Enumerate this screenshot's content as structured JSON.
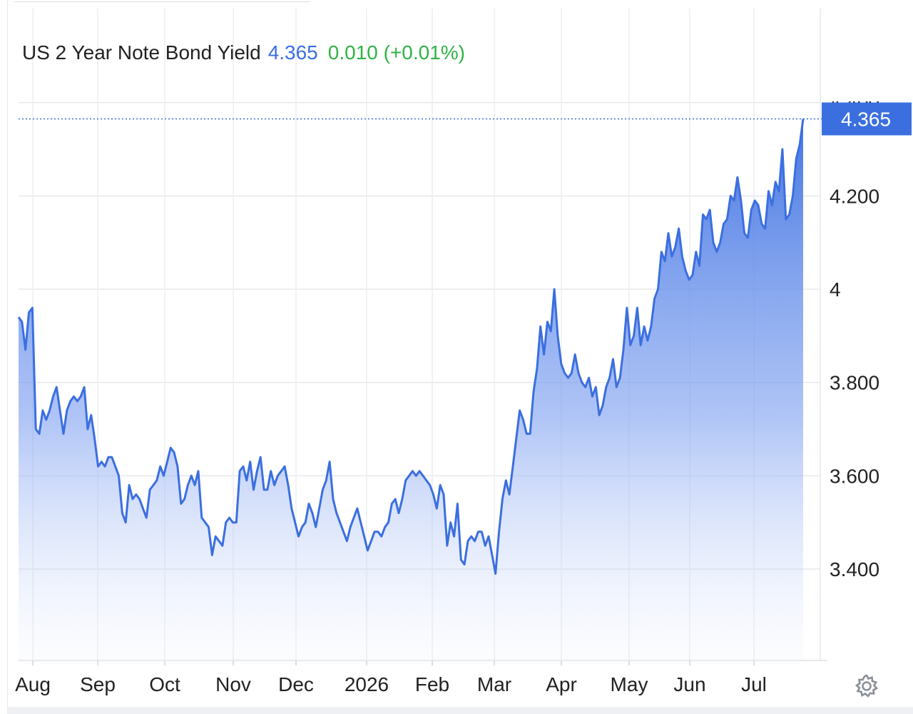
{
  "header": {
    "title": "US 2 Year Note Bond Yield",
    "price": "4.365",
    "change": "0.010 (+0.01%)"
  },
  "last_value_label": "4.365",
  "settings_icon": "gear-icon",
  "colors": {
    "line": "#3b6fe0",
    "change": "#2fb344",
    "badge": "#3b6fe0"
  },
  "chart_data": {
    "type": "area",
    "x_tick_labels": [
      "Aug",
      "Sep",
      "Oct",
      "Nov",
      "Dec",
      "2026",
      "Feb",
      "Mar",
      "Apr",
      "May",
      "Jun",
      "Jul"
    ],
    "y_tick_labels": [
      "4.400",
      "4.200",
      "4",
      "3.800",
      "3.600",
      "3.400"
    ],
    "y_ticks": [
      4.4,
      4.2,
      4.0,
      3.8,
      3.6,
      3.4
    ],
    "ylim": [
      3.2,
      4.6
    ],
    "grid": true,
    "series": [
      {
        "values": [
          3.94,
          3.93,
          3.87,
          3.95,
          3.96,
          3.7,
          3.69,
          3.74,
          3.72,
          3.74,
          3.77,
          3.79,
          3.74,
          3.69,
          3.74,
          3.76,
          3.77,
          3.76,
          3.77,
          3.79,
          3.7,
          3.73,
          3.68,
          3.62,
          3.63,
          3.62,
          3.64,
          3.64,
          3.62,
          3.6,
          3.52,
          3.5,
          3.58,
          3.55,
          3.56,
          3.55,
          3.53,
          3.51,
          3.57,
          3.58,
          3.59,
          3.62,
          3.6,
          3.63,
          3.66,
          3.65,
          3.62,
          3.54,
          3.55,
          3.58,
          3.6,
          3.58,
          3.61,
          3.51,
          3.5,
          3.49,
          3.43,
          3.47,
          3.46,
          3.45,
          3.5,
          3.51,
          3.5,
          3.5,
          3.61,
          3.62,
          3.59,
          3.63,
          3.57,
          3.61,
          3.64,
          3.57,
          3.57,
          3.61,
          3.58,
          3.6,
          3.61,
          3.62,
          3.58,
          3.53,
          3.5,
          3.47,
          3.49,
          3.5,
          3.54,
          3.52,
          3.49,
          3.53,
          3.57,
          3.59,
          3.63,
          3.55,
          3.52,
          3.5,
          3.48,
          3.46,
          3.49,
          3.51,
          3.53,
          3.5,
          3.47,
          3.44,
          3.46,
          3.48,
          3.48,
          3.47,
          3.49,
          3.5,
          3.54,
          3.55,
          3.52,
          3.55,
          3.59,
          3.6,
          3.61,
          3.6,
          3.61,
          3.6,
          3.59,
          3.58,
          3.56,
          3.53,
          3.58,
          3.56,
          3.45,
          3.5,
          3.47,
          3.54,
          3.42,
          3.41,
          3.46,
          3.47,
          3.46,
          3.48,
          3.48,
          3.45,
          3.47,
          3.43,
          3.39,
          3.48,
          3.55,
          3.59,
          3.56,
          3.62,
          3.68,
          3.74,
          3.72,
          3.69,
          3.69,
          3.78,
          3.83,
          3.92,
          3.86,
          3.93,
          3.91,
          4.0,
          3.9,
          3.84,
          3.82,
          3.81,
          3.82,
          3.86,
          3.82,
          3.8,
          3.79,
          3.81,
          3.77,
          3.79,
          3.73,
          3.75,
          3.79,
          3.81,
          3.85,
          3.79,
          3.81,
          3.87,
          3.96,
          3.88,
          3.9,
          3.96,
          3.88,
          3.92,
          3.89,
          3.92,
          3.98,
          4.0,
          4.08,
          4.06,
          4.12,
          4.07,
          4.09,
          4.13,
          4.07,
          4.04,
          4.02,
          4.03,
          4.08,
          4.05,
          4.16,
          4.15,
          4.17,
          4.1,
          4.08,
          4.1,
          4.14,
          4.15,
          4.2,
          4.19,
          4.24,
          4.19,
          4.12,
          4.11,
          4.17,
          4.19,
          4.18,
          4.14,
          4.13,
          4.21,
          4.18,
          4.23,
          4.21,
          4.3,
          4.15,
          4.16,
          4.2,
          4.28,
          4.31,
          4.365
        ]
      }
    ]
  }
}
